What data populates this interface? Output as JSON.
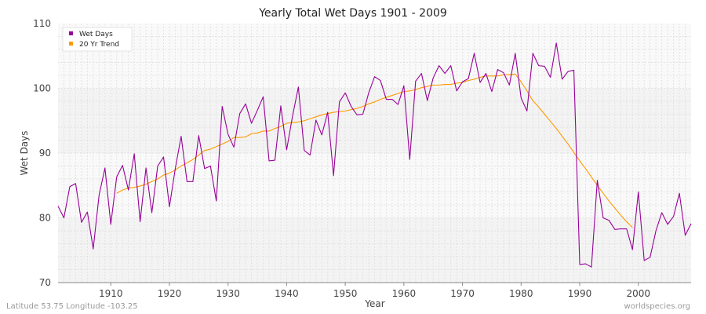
{
  "chart_data": {
    "type": "line",
    "title": "Yearly Total Wet Days 1901 - 2009",
    "xlabel": "Year",
    "ylabel": "Wet Days",
    "xlim": [
      1901,
      2009
    ],
    "ylim": [
      70,
      110
    ],
    "xticks": [
      1910,
      1920,
      1930,
      1940,
      1950,
      1960,
      1970,
      1980,
      1990,
      2000
    ],
    "yticks": [
      70,
      80,
      90,
      100,
      110
    ],
    "grid": true,
    "legend_position": "top-left",
    "series": [
      {
        "name": "Wet Days",
        "color": "#990099",
        "x": [
          1901,
          1902,
          1903,
          1904,
          1905,
          1906,
          1907,
          1908,
          1909,
          1910,
          1911,
          1912,
          1913,
          1914,
          1915,
          1916,
          1917,
          1918,
          1919,
          1920,
          1921,
          1922,
          1923,
          1924,
          1925,
          1926,
          1927,
          1928,
          1929,
          1930,
          1931,
          1932,
          1933,
          1934,
          1935,
          1936,
          1937,
          1938,
          1939,
          1940,
          1941,
          1942,
          1943,
          1944,
          1945,
          1946,
          1947,
          1948,
          1949,
          1950,
          1951,
          1952,
          1953,
          1954,
          1955,
          1956,
          1957,
          1958,
          1959,
          1960,
          1961,
          1962,
          1963,
          1964,
          1965,
          1966,
          1967,
          1968,
          1969,
          1970,
          1971,
          1972,
          1973,
          1974,
          1975,
          1976,
          1977,
          1978,
          1979,
          1980,
          1981,
          1982,
          1983,
          1984,
          1985,
          1986,
          1987,
          1988,
          1989,
          1990,
          1991,
          1992,
          1993,
          1994,
          1995,
          1996,
          1997,
          1998,
          1999,
          2000,
          2001,
          2002,
          2003,
          2004,
          2005,
          2006,
          2007,
          2008,
          2009
        ],
        "values": [
          81.8,
          80.0,
          84.8,
          85.3,
          79.3,
          80.9,
          75.2,
          83.5,
          87.7,
          79.0,
          86.3,
          88.1,
          84.3,
          89.9,
          79.4,
          87.7,
          80.8,
          88.0,
          89.4,
          81.7,
          87.6,
          92.6,
          85.6,
          85.6,
          92.7,
          87.6,
          88.0,
          82.6,
          97.2,
          92.9,
          90.9,
          96.1,
          97.6,
          94.6,
          96.6,
          98.7,
          88.8,
          88.9,
          97.3,
          90.5,
          95.7,
          100.2,
          90.4,
          89.7,
          95.1,
          92.8,
          96.3,
          86.5,
          97.9,
          99.3,
          97.2,
          95.9,
          96.0,
          99.3,
          101.8,
          101.2,
          98.3,
          98.3,
          97.5,
          100.4,
          89.0,
          101.1,
          102.3,
          98.1,
          101.6,
          103.5,
          102.3,
          103.5,
          99.6,
          101.0,
          101.5,
          105.4,
          100.9,
          102.3,
          99.5,
          102.9,
          102.4,
          100.5,
          105.4,
          98.5,
          96.5,
          105.4,
          103.5,
          103.4,
          101.7,
          107.0,
          101.4,
          102.6,
          102.8,
          72.8,
          72.9,
          72.4,
          85.8,
          80.0,
          79.6,
          78.2,
          78.3,
          78.3,
          75.1,
          84.0,
          73.4,
          73.9,
          78.0,
          80.8,
          79.0,
          80.2,
          83.8,
          77.3,
          79.1
        ]
      },
      {
        "name": "20 Yr Trend",
        "color": "#ff9900",
        "x": [
          1911,
          1912,
          1913,
          1914,
          1915,
          1916,
          1917,
          1918,
          1919,
          1920,
          1921,
          1922,
          1923,
          1924,
          1925,
          1926,
          1927,
          1928,
          1929,
          1930,
          1931,
          1932,
          1933,
          1934,
          1935,
          1936,
          1937,
          1938,
          1939,
          1940,
          1941,
          1942,
          1943,
          1944,
          1945,
          1946,
          1947,
          1948,
          1949,
          1950,
          1951,
          1952,
          1953,
          1954,
          1955,
          1956,
          1957,
          1958,
          1959,
          1960,
          1961,
          1962,
          1963,
          1964,
          1965,
          1966,
          1967,
          1968,
          1969,
          1970,
          1971,
          1972,
          1973,
          1974,
          1975,
          1976,
          1977,
          1978,
          1979,
          1980,
          1981,
          1982,
          1983,
          1984,
          1985,
          1986,
          1987,
          1988,
          1989,
          1990,
          1991,
          1992,
          1993,
          1994,
          1995,
          1996,
          1997,
          1998,
          1999
        ],
        "values": [
          83.8,
          84.3,
          84.6,
          84.7,
          84.9,
          85.2,
          85.6,
          86.0,
          86.6,
          86.9,
          87.4,
          88.0,
          88.5,
          89.0,
          89.7,
          90.4,
          90.6,
          91.0,
          91.4,
          91.8,
          92.4,
          92.4,
          92.5,
          93.0,
          93.1,
          93.4,
          93.4,
          93.8,
          94.1,
          94.6,
          94.7,
          94.8,
          95.0,
          95.3,
          95.6,
          95.9,
          96.1,
          96.3,
          96.4,
          96.5,
          96.7,
          96.9,
          97.2,
          97.6,
          97.9,
          98.3,
          98.6,
          98.9,
          99.2,
          99.5,
          99.6,
          99.8,
          100.1,
          100.3,
          100.5,
          100.5,
          100.6,
          100.6,
          100.8,
          100.9,
          101.2,
          101.4,
          101.7,
          101.9,
          101.9,
          101.9,
          102.1,
          102.1,
          102.2,
          101.0,
          99.6,
          98.1,
          97.1,
          96.0,
          94.9,
          93.8,
          92.6,
          91.4,
          90.1,
          88.8,
          87.6,
          86.3,
          85.0,
          83.8,
          82.6,
          81.5,
          80.4,
          79.4,
          78.5
        ]
      }
    ]
  },
  "footer": {
    "location": "Latitude 53.75 Longitude -103.25",
    "credit": "worldspecies.org"
  }
}
